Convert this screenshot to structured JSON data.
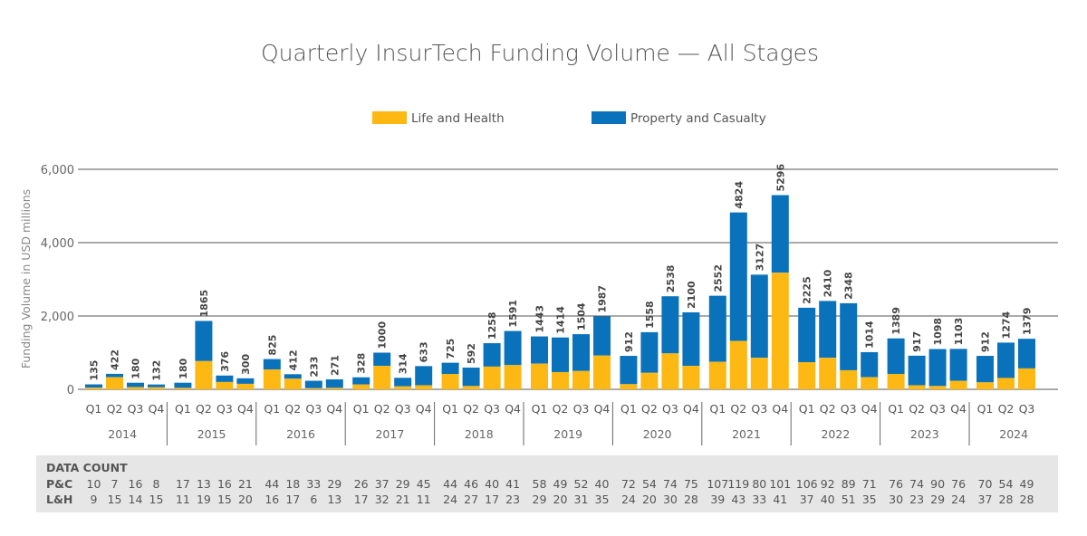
{
  "chart_data": {
    "type": "bar",
    "stacked": true,
    "title": "Quarterly InsurTech Funding Volume — All Stages",
    "ylabel": "Funding Volume in USD millions",
    "ylim": [
      0,
      6000
    ],
    "yticks": [
      "0",
      "2,000",
      "4,000",
      "6,000"
    ],
    "ytick_values": [
      0,
      2000,
      4000,
      6000
    ],
    "legend": {
      "position": "top-center",
      "entries": [
        "Life and Health",
        "Property and Casualty"
      ]
    },
    "colors": {
      "lh": "#FDB813",
      "pc": "#0A72BA",
      "grid": "#555555",
      "panel": "#E6E6E6"
    },
    "data_count_header": "DATA COUNT",
    "pc_label": "P&C",
    "lh_label": "L&H",
    "years": [
      {
        "year": "2014",
        "quarters": [
          {
            "q": "Q1",
            "total": 135,
            "total_label": "135",
            "lh": 45,
            "pc_count": "10",
            "lh_count": "9"
          },
          {
            "q": "Q2",
            "total": 422,
            "total_label": "422",
            "lh": 330,
            "pc_count": "7",
            "lh_count": "15"
          },
          {
            "q": "Q3",
            "total": 180,
            "total_label": "180",
            "lh": 60,
            "pc_count": "16",
            "lh_count": "14"
          },
          {
            "q": "Q4",
            "total": 132,
            "total_label": "132",
            "lh": 55,
            "pc_count": "8",
            "lh_count": "15"
          }
        ]
      },
      {
        "year": "2015",
        "quarters": [
          {
            "q": "Q1",
            "total": 180,
            "total_label": "180",
            "lh": 40,
            "pc_count": "17",
            "lh_count": "11"
          },
          {
            "q": "Q2",
            "total": 1865,
            "total_label": "1865",
            "lh": 770,
            "pc_count": "13",
            "lh_count": "19"
          },
          {
            "q": "Q3",
            "total": 376,
            "total_label": "376",
            "lh": 200,
            "pc_count": "16",
            "lh_count": "15"
          },
          {
            "q": "Q4",
            "total": 300,
            "total_label": "300",
            "lh": 150,
            "pc_count": "21",
            "lh_count": "20"
          }
        ]
      },
      {
        "year": "2016",
        "quarters": [
          {
            "q": "Q1",
            "total": 825,
            "total_label": "825",
            "lh": 540,
            "pc_count": "44",
            "lh_count": "16"
          },
          {
            "q": "Q2",
            "total": 412,
            "total_label": "412",
            "lh": 290,
            "pc_count": "18",
            "lh_count": "17"
          },
          {
            "q": "Q3",
            "total": 233,
            "total_label": "233",
            "lh": 30,
            "pc_count": "33",
            "lh_count": "6"
          },
          {
            "q": "Q4",
            "total": 271,
            "total_label": "271",
            "lh": 40,
            "pc_count": "29",
            "lh_count": "13"
          }
        ]
      },
      {
        "year": "2017",
        "quarters": [
          {
            "q": "Q1",
            "total": 328,
            "total_label": "328",
            "lh": 130,
            "pc_count": "26",
            "lh_count": "17"
          },
          {
            "q": "Q2",
            "total": 1000,
            "total_label": "1000",
            "lh": 640,
            "pc_count": "37",
            "lh_count": "32"
          },
          {
            "q": "Q3",
            "total": 314,
            "total_label": "314",
            "lh": 80,
            "pc_count": "29",
            "lh_count": "21"
          },
          {
            "q": "Q4",
            "total": 633,
            "total_label": "633",
            "lh": 110,
            "pc_count": "45",
            "lh_count": "11"
          }
        ]
      },
      {
        "year": "2018",
        "quarters": [
          {
            "q": "Q1",
            "total": 725,
            "total_label": "725",
            "lh": 420,
            "pc_count": "44",
            "lh_count": "24"
          },
          {
            "q": "Q2",
            "total": 592,
            "total_label": "592",
            "lh": 90,
            "pc_count": "46",
            "lh_count": "27"
          },
          {
            "q": "Q3",
            "total": 1258,
            "total_label": "1258",
            "lh": 620,
            "pc_count": "40",
            "lh_count": "17"
          },
          {
            "q": "Q4",
            "total": 1591,
            "total_label": "1591",
            "lh": 660,
            "pc_count": "41",
            "lh_count": "23"
          }
        ]
      },
      {
        "year": "2019",
        "quarters": [
          {
            "q": "Q1",
            "total": 1443,
            "total_label": "1443",
            "lh": 700,
            "pc_count": "58",
            "lh_count": "29"
          },
          {
            "q": "Q2",
            "total": 1414,
            "total_label": "1414",
            "lh": 470,
            "pc_count": "49",
            "lh_count": "20"
          },
          {
            "q": "Q3",
            "total": 1504,
            "total_label": "1504",
            "lh": 500,
            "pc_count": "52",
            "lh_count": "31"
          },
          {
            "q": "Q4",
            "total": 1987,
            "total_label": "1987",
            "lh": 920,
            "pc_count": "40",
            "lh_count": "35"
          }
        ]
      },
      {
        "year": "2020",
        "quarters": [
          {
            "q": "Q1",
            "total": 912,
            "total_label": "912",
            "lh": 140,
            "pc_count": "72",
            "lh_count": "24"
          },
          {
            "q": "Q2",
            "total": 1558,
            "total_label": "1558",
            "lh": 450,
            "pc_count": "54",
            "lh_count": "20"
          },
          {
            "q": "Q3",
            "total": 2538,
            "total_label": "2538",
            "lh": 980,
            "pc_count": "74",
            "lh_count": "30"
          },
          {
            "q": "Q4",
            "total": 2100,
            "total_label": "2100",
            "lh": 640,
            "pc_count": "75",
            "lh_count": "28"
          }
        ]
      },
      {
        "year": "2021",
        "quarters": [
          {
            "q": "Q1",
            "total": 2552,
            "total_label": "2552",
            "lh": 750,
            "pc_count": "107",
            "lh_count": "39"
          },
          {
            "q": "Q2",
            "total": 4824,
            "total_label": "4824",
            "lh": 1320,
            "pc_count": "119",
            "lh_count": "43"
          },
          {
            "q": "Q3",
            "total": 3127,
            "total_label": "3127",
            "lh": 860,
            "pc_count": "80",
            "lh_count": "33"
          },
          {
            "q": "Q4",
            "total": 5296,
            "total_label": "5296",
            "lh": 3180,
            "pc_count": "101",
            "lh_count": "41"
          }
        ]
      },
      {
        "year": "2022",
        "quarters": [
          {
            "q": "Q1",
            "total": 2225,
            "total_label": "2225",
            "lh": 740,
            "pc_count": "106",
            "lh_count": "37"
          },
          {
            "q": "Q2",
            "total": 2410,
            "total_label": "2410",
            "lh": 860,
            "pc_count": "92",
            "lh_count": "40"
          },
          {
            "q": "Q3",
            "total": 2348,
            "total_label": "2348",
            "lh": 520,
            "pc_count": "89",
            "lh_count": "51"
          },
          {
            "q": "Q4",
            "total": 1014,
            "total_label": "1014",
            "lh": 330,
            "pc_count": "71",
            "lh_count": "35"
          }
        ]
      },
      {
        "year": "2023",
        "quarters": [
          {
            "q": "Q1",
            "total": 1389,
            "total_label": "1389",
            "lh": 420,
            "pc_count": "76",
            "lh_count": "30"
          },
          {
            "q": "Q2",
            "total": 917,
            "total_label": "917",
            "lh": 110,
            "pc_count": "74",
            "lh_count": "23"
          },
          {
            "q": "Q3",
            "total": 1098,
            "total_label": "1098",
            "lh": 90,
            "pc_count": "90",
            "lh_count": "29"
          },
          {
            "q": "Q4",
            "total": 1103,
            "total_label": "1103",
            "lh": 230,
            "pc_count": "76",
            "lh_count": "24"
          }
        ]
      },
      {
        "year": "2024",
        "quarters": [
          {
            "q": "Q1",
            "total": 912,
            "total_label": "912",
            "lh": 190,
            "pc_count": "70",
            "lh_count": "37"
          },
          {
            "q": "Q2",
            "total": 1274,
            "total_label": "1274",
            "lh": 310,
            "pc_count": "54",
            "lh_count": "28"
          },
          {
            "q": "Q3",
            "total": 1379,
            "total_label": "1379",
            "lh": 570,
            "pc_count": "49",
            "lh_count": "28"
          }
        ]
      }
    ]
  }
}
